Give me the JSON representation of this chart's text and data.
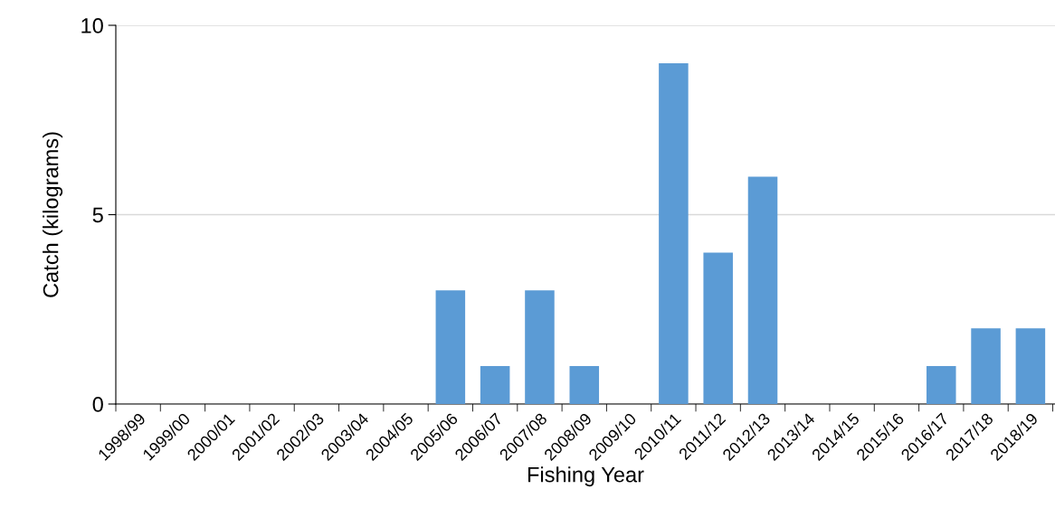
{
  "chart_data": {
    "type": "bar",
    "xlabel": "Fishing Year",
    "ylabel": "Catch (kilograms)",
    "categories": [
      "1998/99",
      "1999/00",
      "2000/01",
      "2001/02",
      "2002/03",
      "2003/04",
      "2004/05",
      "2005/06",
      "2006/07",
      "2007/08",
      "2008/09",
      "2009/10",
      "2010/11",
      "2011/12",
      "2012/13",
      "2013/14",
      "2014/15",
      "2015/16",
      "2016/17",
      "2017/18",
      "2018/19"
    ],
    "values": [
      0,
      0,
      0,
      0,
      0,
      0,
      0,
      3,
      1,
      3,
      1,
      0,
      9,
      4,
      6,
      0,
      0,
      0,
      1,
      2,
      2
    ],
    "color": "#5b9bd5",
    "ylim": [
      0,
      10
    ],
    "yticks": [
      0,
      5,
      10
    ],
    "grid": "y"
  }
}
